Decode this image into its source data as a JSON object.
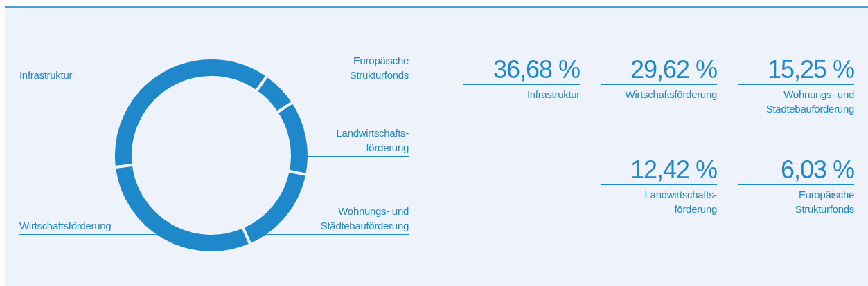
{
  "chart_data": [
    {
      "type": "donut",
      "categories": [
        "Infrastruktur",
        "Wirtschaftsförderung",
        "Wohnungs- und\nStädtebauförderung",
        "Landwirtschafts-\nförderung",
        "Europäische\nStrukturfonds"
      ],
      "values": [
        36.68,
        29.62,
        15.25,
        12.42,
        6.03
      ],
      "colors": [
        "#1f88ca",
        "#1f88ca",
        "#1f88ca",
        "#1f88ca",
        "#1f88ca"
      ]
    },
    {
      "type": "other",
      "categories": [
        "Infrastruktur",
        "Wirtschaftsförderung",
        "Wohnungs- und\nStädtebauförderung",
        "Landwirtschafts-\nförderung",
        "Europäische\nStrukturfonds"
      ],
      "value_labels": [
        "36,68 %",
        "29,62 %",
        "15,25 %",
        "12,42 %",
        "6,03 %"
      ]
    }
  ]
}
